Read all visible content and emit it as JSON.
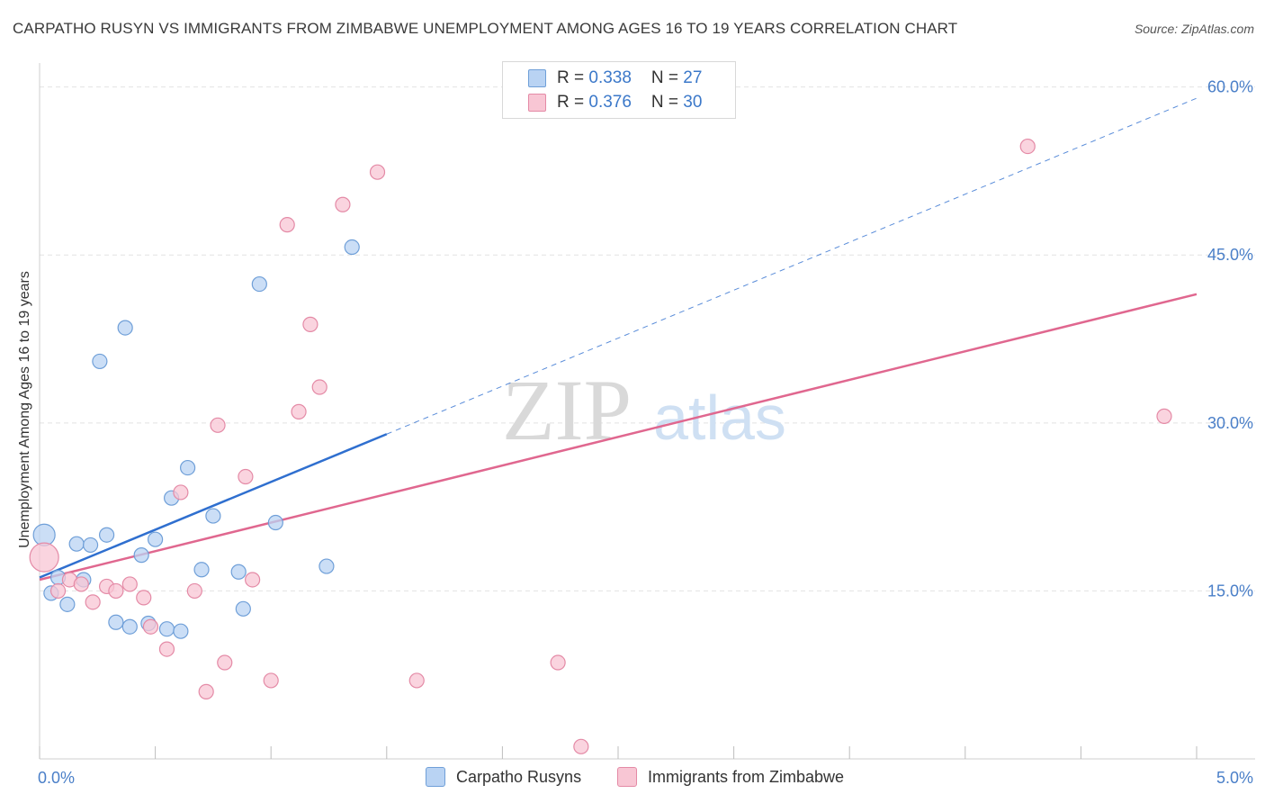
{
  "title": "CARPATHO RUSYN VS IMMIGRANTS FROM ZIMBABWE UNEMPLOYMENT AMONG AGES 16 TO 19 YEARS CORRELATION CHART",
  "source": "Source: ZipAtlas.com",
  "watermark": {
    "zip": "ZIP",
    "atlas": "atlas"
  },
  "legend": {
    "rows": [
      {
        "r_label": "R = ",
        "r_value": "0.338",
        "n_label": "N = ",
        "n_value": "27"
      },
      {
        "r_label": "R = ",
        "r_value": "0.376",
        "n_label": "N = ",
        "n_value": "30"
      }
    ]
  },
  "colors": {
    "blue_fill": "#b9d3f3",
    "blue_stroke": "#6f9fd8",
    "blue_line": "#2f6fcf",
    "pink_fill": "#f8c6d4",
    "pink_stroke": "#e48aa6",
    "pink_line": "#e0678f",
    "grid": "#e2e2e2",
    "tick_text": "#4a7fc8"
  },
  "chart_data": {
    "type": "scatter",
    "title": "CARPATHO RUSYN VS IMMIGRANTS FROM ZIMBABWE UNEMPLOYMENT AMONG AGES 16 TO 19 YEARS CORRELATION CHART",
    "xlabel": "",
    "ylabel": "Unemployment Among Ages 16 to 19 years",
    "xlim": [
      0,
      5
    ],
    "ylim": [
      0,
      60
    ],
    "x_tick_labels": [
      "0.0%",
      "5.0%"
    ],
    "y_ticks": [
      15,
      30,
      45,
      60
    ],
    "y_tick_labels": [
      "15.0%",
      "30.0%",
      "45.0%",
      "60.0%"
    ],
    "grid": true,
    "series": [
      {
        "name": "Carpatho Rusyns",
        "color": "#6f9fd8",
        "R": 0.338,
        "N": 27,
        "points": [
          [
            0.02,
            20.0
          ],
          [
            0.05,
            14.8
          ],
          [
            0.08,
            16.2
          ],
          [
            0.12,
            13.8
          ],
          [
            0.16,
            19.2
          ],
          [
            0.19,
            16.0
          ],
          [
            0.22,
            19.1
          ],
          [
            0.26,
            35.5
          ],
          [
            0.29,
            20.0
          ],
          [
            0.33,
            12.2
          ],
          [
            0.37,
            38.5
          ],
          [
            0.39,
            11.8
          ],
          [
            0.44,
            18.2
          ],
          [
            0.47,
            12.1
          ],
          [
            0.5,
            19.6
          ],
          [
            0.55,
            11.6
          ],
          [
            0.57,
            23.3
          ],
          [
            0.61,
            11.4
          ],
          [
            0.64,
            26.0
          ],
          [
            0.7,
            16.9
          ],
          [
            0.75,
            21.7
          ],
          [
            0.86,
            16.7
          ],
          [
            0.88,
            13.4
          ],
          [
            0.95,
            42.4
          ],
          [
            1.02,
            21.1
          ],
          [
            1.24,
            17.2
          ],
          [
            1.35,
            45.7
          ]
        ],
        "trend": {
          "x0": 0.0,
          "y0": 16.2,
          "x1": 1.5,
          "y1": 29.0,
          "extended_to": {
            "x": 5.0,
            "y": 59.0
          }
        }
      },
      {
        "name": "Immigrants from Zimbabwe",
        "color": "#e48aa6",
        "R": 0.376,
        "N": 30,
        "points": [
          [
            0.02,
            18.0
          ],
          [
            0.08,
            15.0
          ],
          [
            0.13,
            16.0
          ],
          [
            0.18,
            15.6
          ],
          [
            0.23,
            14.0
          ],
          [
            0.29,
            15.4
          ],
          [
            0.33,
            15.0
          ],
          [
            0.39,
            15.6
          ],
          [
            0.45,
            14.4
          ],
          [
            0.48,
            11.8
          ],
          [
            0.55,
            9.8
          ],
          [
            0.61,
            23.8
          ],
          [
            0.67,
            15.0
          ],
          [
            0.72,
            6.0
          ],
          [
            0.77,
            29.8
          ],
          [
            0.8,
            8.6
          ],
          [
            0.89,
            25.2
          ],
          [
            0.92,
            16.0
          ],
          [
            1.0,
            7.0
          ],
          [
            1.07,
            47.7
          ],
          [
            1.12,
            31.0
          ],
          [
            1.17,
            38.8
          ],
          [
            1.21,
            33.2
          ],
          [
            1.31,
            49.5
          ],
          [
            1.46,
            52.4
          ],
          [
            1.63,
            7.0
          ],
          [
            2.24,
            8.6
          ],
          [
            2.34,
            1.1
          ],
          [
            4.27,
            54.7
          ],
          [
            4.86,
            30.6
          ]
        ],
        "trend": {
          "x0": 0.0,
          "y0": 16.0,
          "x1": 5.0,
          "y1": 41.5
        }
      }
    ]
  },
  "bottom_legend": [
    {
      "label": "Carpatho Rusyns"
    },
    {
      "label": "Immigrants from Zimbabwe"
    }
  ]
}
